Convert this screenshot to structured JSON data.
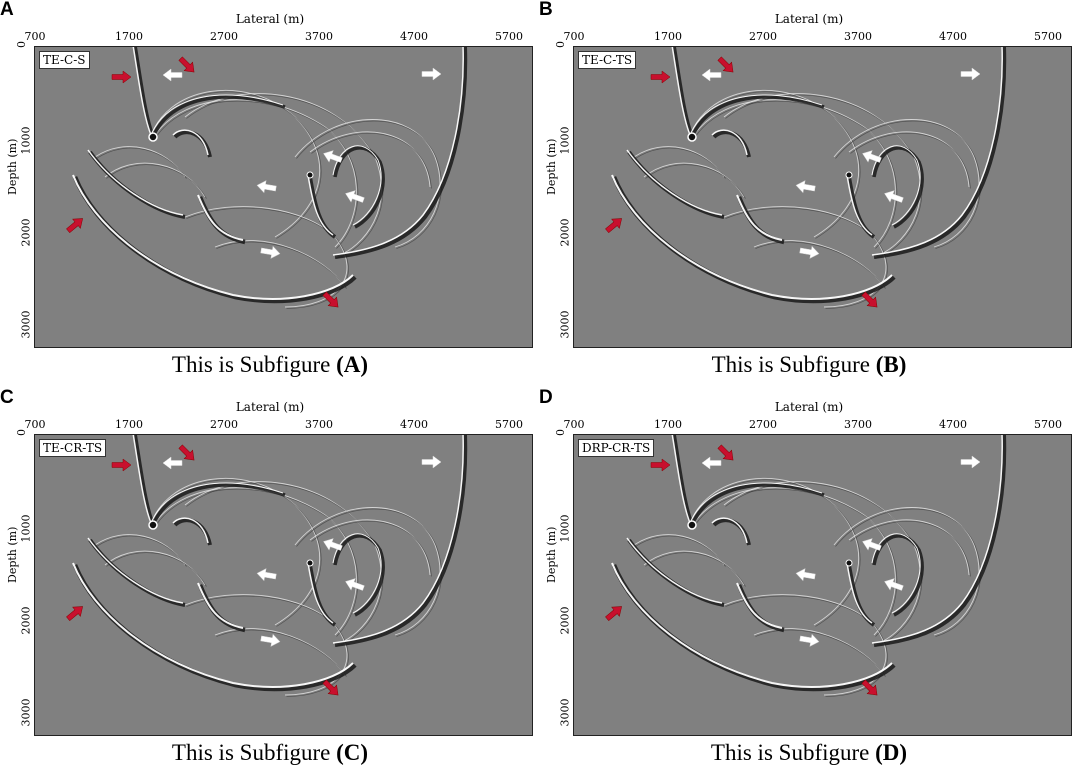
{
  "axis": {
    "x_title": "Lateral (m)",
    "y_title": "Depth (m)",
    "x_ticks": [
      "700",
      "1700",
      "2700",
      "3700",
      "4700",
      "5700"
    ],
    "y_ticks": [
      "0",
      "1000",
      "2000",
      "3000"
    ]
  },
  "panels": [
    {
      "letter": "A",
      "tag": "TE-C-S",
      "caption_text": "This is Subfigure ",
      "caption_bold": "(A)"
    },
    {
      "letter": "B",
      "tag": "TE-C-TS",
      "caption_text": "This is Subfigure ",
      "caption_bold": "(B)"
    },
    {
      "letter": "C",
      "tag": "TE-CR-TS",
      "caption_text": "This is Subfigure ",
      "caption_bold": "(C)"
    },
    {
      "letter": "D",
      "tag": "DRP-CR-TS",
      "caption_text": "This is Subfigure ",
      "caption_bold": "(D)"
    }
  ],
  "colors": {
    "background": "#808080",
    "red_arrow": "#c8102e",
    "white_arrow": "#ffffff"
  }
}
